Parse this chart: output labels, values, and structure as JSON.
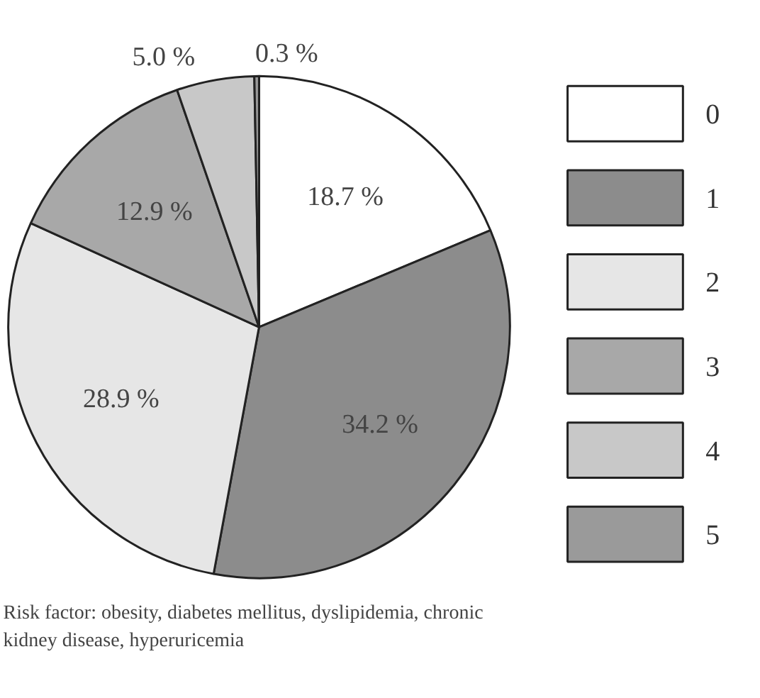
{
  "chart_data": {
    "type": "pie",
    "categories": [
      "0",
      "1",
      "2",
      "3",
      "4",
      "5"
    ],
    "values": [
      18.7,
      34.2,
      28.9,
      12.9,
      5.0,
      0.3
    ],
    "colors": [
      "#ffffff",
      "#8c8c8c",
      "#e6e6e6",
      "#a8a8a8",
      "#c8c8c8",
      "#9a9a9a"
    ],
    "value_labels": [
      "18.7 %",
      "34.2 %",
      "28.9 %",
      "12.9 %",
      "5.0 %",
      "0.3 %"
    ],
    "legend": "right",
    "annotations": [
      "Risk factor: obesity, diabetes mellitus, dyslipidemia, chronic kidney disease, hyperuricemia"
    ]
  }
}
